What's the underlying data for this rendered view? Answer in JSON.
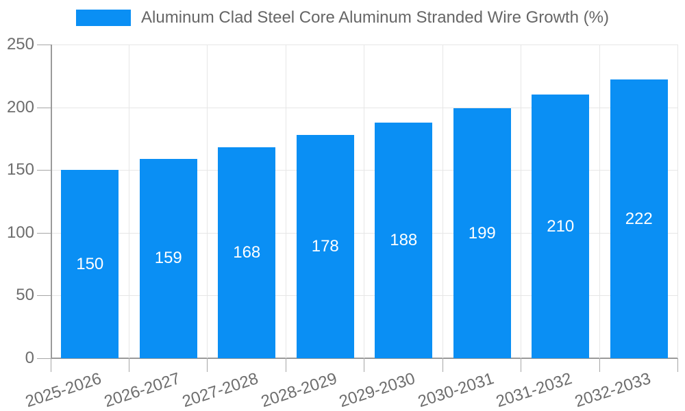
{
  "chart_data": {
    "type": "bar",
    "title": "Aluminum Clad Steel Core Aluminum Stranded Wire Growth (%)",
    "categories": [
      "2025-2026",
      "2026-2027",
      "2027-2028",
      "2028-2029",
      "2029-2030",
      "2030-2031",
      "2031-2032",
      "2032-2033"
    ],
    "values": [
      150,
      159,
      168,
      178,
      188,
      199,
      210,
      222
    ],
    "xlabel": "",
    "ylabel": "",
    "ylim": [
      0,
      250
    ],
    "ytick_step": 50,
    "yticks": [
      0,
      50,
      100,
      150,
      200,
      250
    ],
    "grid": true,
    "legend_position": "top",
    "bar_color": "#0a8ff4",
    "value_label_color": "#ffffff"
  },
  "colors": {
    "axis_line": "#9a9a9a",
    "grid_line": "#e6e6e6",
    "tick_text": "#6d6d6d",
    "legend_text": "#666666",
    "background": "#ffffff"
  }
}
